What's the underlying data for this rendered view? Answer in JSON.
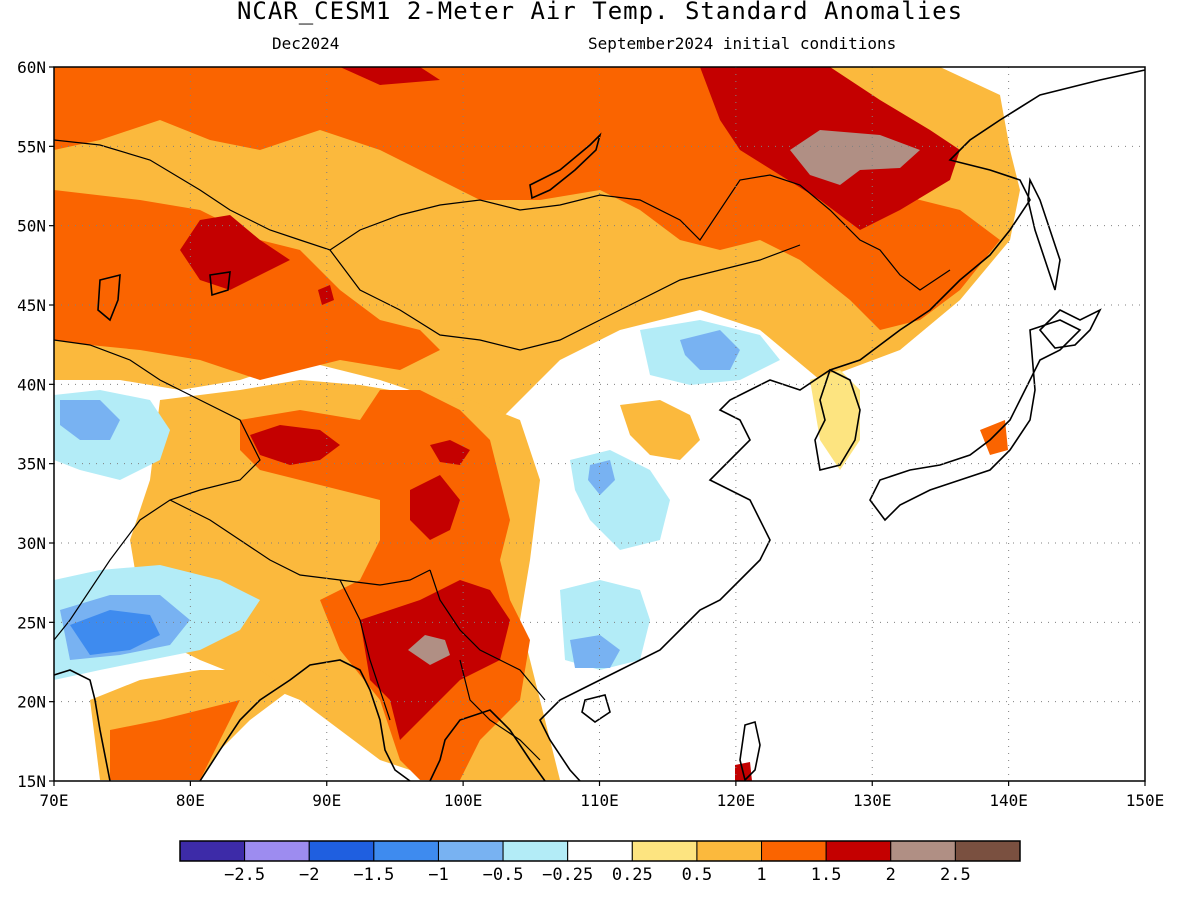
{
  "header": {
    "title": "NCAR_CESM1 2-Meter Air Temp. Standard Anomalies",
    "valid_month": "Dec2024",
    "initial_conditions": "September2024 initial conditions"
  },
  "map": {
    "lon_range": [
      70,
      150
    ],
    "lat_range": [
      15,
      60
    ],
    "lon_ticks": [
      "70E",
      "80E",
      "90E",
      "100E",
      "110E",
      "120E",
      "130E",
      "140E",
      "150E"
    ],
    "lat_ticks": [
      "15N",
      "20N",
      "25N",
      "30N",
      "35N",
      "40N",
      "45N",
      "50N",
      "55N",
      "60N"
    ],
    "gridlines": true
  },
  "colorbar": {
    "colors": [
      "#3d2ba8",
      "#9d8cf0",
      "#1f5fe0",
      "#3e8bef",
      "#78b2f2",
      "#b3ecf7",
      "#ffffff",
      "#fde480",
      "#fbb93d",
      "#fa6400",
      "#c40000",
      "#b08f84",
      "#7a5040"
    ],
    "labels": [
      "-2.5",
      "-2",
      "-1.5",
      "-1",
      "-0.5",
      "-0.25",
      "0.25",
      "0.5",
      "1",
      "1.5",
      "2",
      "2.5"
    ]
  },
  "colors": {
    "land_weak": "#ffffff",
    "ocean": "#ffffff",
    "coastline": "#000000"
  }
}
